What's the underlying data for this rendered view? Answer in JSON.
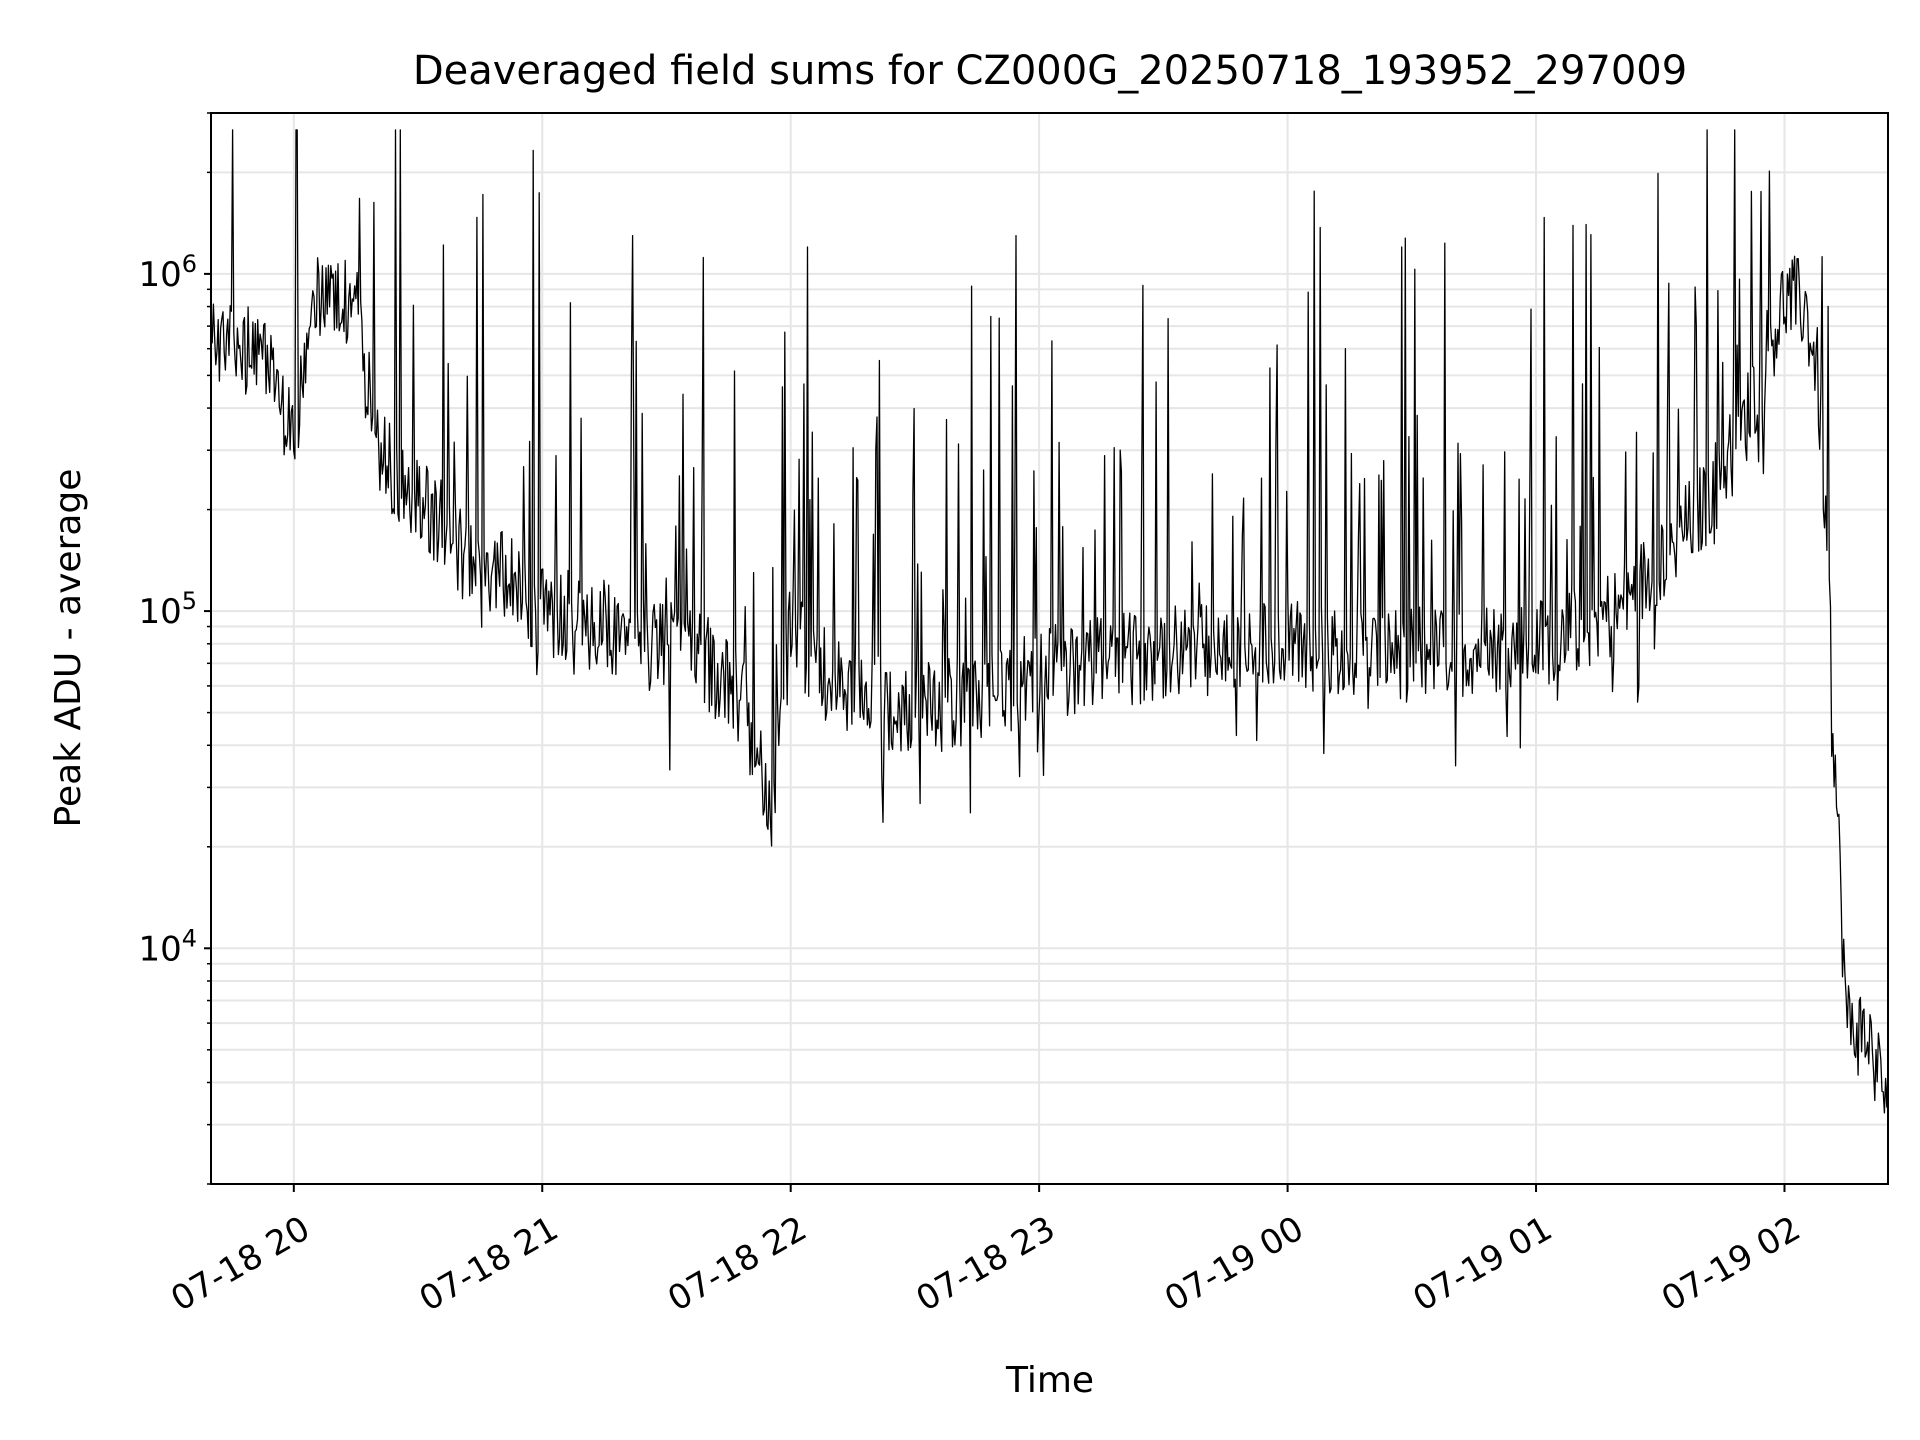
{
  "chart_data": {
    "type": "line",
    "title": "Deaveraged field sums for CZ000G_20250718_193952_297009",
    "xlabel": "Time",
    "ylabel": "Peak ADU - average",
    "yscale": "log",
    "xlim": [
      "2025-07-18T19:40:00",
      "2025-07-19T02:25:00"
    ],
    "ylim": [
      2000,
      3000000
    ],
    "grid": true,
    "line_color": "#000000",
    "grid_color": "#e6e6e6",
    "x_ticks": [
      {
        "t": "2025-07-18T20:00:00",
        "label": "07-18 20"
      },
      {
        "t": "2025-07-18T21:00:00",
        "label": "07-18 21"
      },
      {
        "t": "2025-07-18T22:00:00",
        "label": "07-18 22"
      },
      {
        "t": "2025-07-18T23:00:00",
        "label": "07-18 23"
      },
      {
        "t": "2025-07-19T00:00:00",
        "label": "07-19 00"
      },
      {
        "t": "2025-07-19T01:00:00",
        "label": "07-19 01"
      },
      {
        "t": "2025-07-19T02:00:00",
        "label": "07-19 02"
      }
    ],
    "y_ticks": [
      {
        "value": 10000,
        "base": "10",
        "exp": "4"
      },
      {
        "value": 100000,
        "base": "10",
        "exp": "5"
      },
      {
        "value": 1000000,
        "base": "10",
        "exp": "6"
      }
    ],
    "series": [
      {
        "x": [
          "2025-07-18T19:40:00",
          "2025-07-18T19:45:00",
          "2025-07-18T19:50:00",
          "2025-07-18T19:55:00",
          "2025-07-18T20:00:00",
          "2025-07-18T20:05:00",
          "2025-07-18T20:10:00",
          "2025-07-18T20:15:00",
          "2025-07-18T20:20:00",
          "2025-07-18T20:30:00",
          "2025-07-18T20:40:00",
          "2025-07-18T20:50:00",
          "2025-07-18T21:00:00",
          "2025-07-18T21:15:00",
          "2025-07-18T21:30:00",
          "2025-07-18T21:40:00",
          "2025-07-18T21:50:00",
          "2025-07-18T21:55:00",
          "2025-07-18T22:00:00",
          "2025-07-18T22:10:00",
          "2025-07-18T22:30:00",
          "2025-07-18T22:45:00",
          "2025-07-18T23:00:00",
          "2025-07-18T23:30:00",
          "2025-07-19T00:00:00",
          "2025-07-19T00:30:00",
          "2025-07-19T01:00:00",
          "2025-07-19T01:20:00",
          "2025-07-19T01:40:00",
          "2025-07-19T01:50:00",
          "2025-07-19T02:00:00",
          "2025-07-19T02:05:00",
          "2025-07-19T02:08:00",
          "2025-07-19T02:10:00",
          "2025-07-19T02:12:00",
          "2025-07-19T02:15:00",
          "2025-07-19T02:20:00",
          "2025-07-19T02:25:00"
        ],
        "y": [
          600000,
          620000,
          580000,
          500000,
          300000,
          900000,
          850000,
          800000,
          300000,
          220000,
          150000,
          130000,
          100000,
          90000,
          80000,
          70000,
          50000,
          25000,
          90000,
          60000,
          50000,
          55000,
          65000,
          75000,
          80000,
          75000,
          80000,
          100000,
          200000,
          350000,
          850000,
          800000,
          500000,
          200000,
          40000,
          6000,
          5500,
          3500
        ]
      }
    ]
  }
}
